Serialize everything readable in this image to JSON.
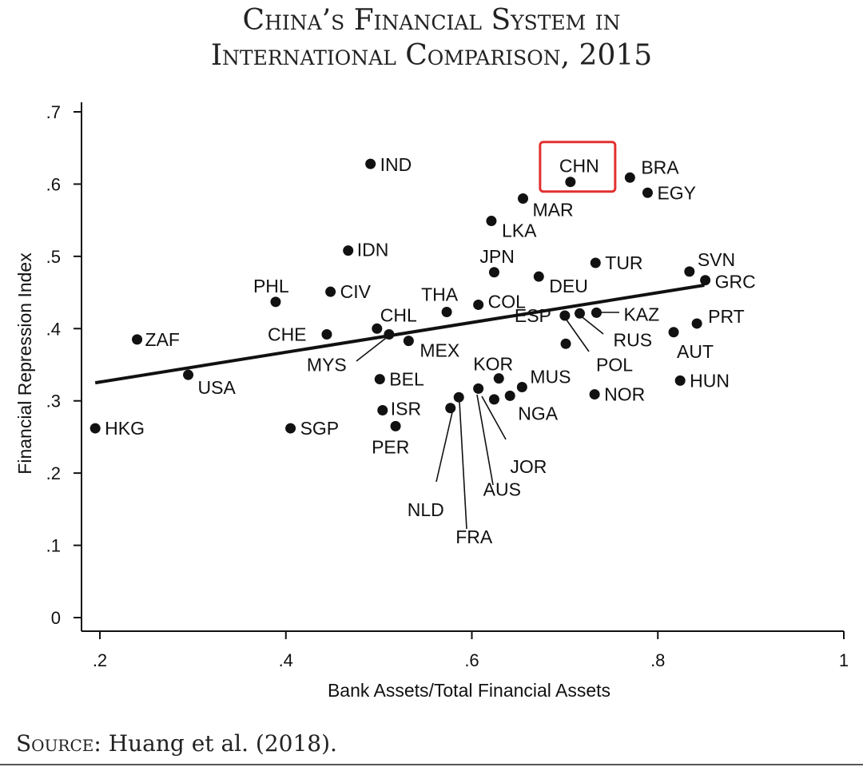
{
  "title": {
    "line1": "China’s Financial System in",
    "line2": "International Comparison, 2015"
  },
  "source": {
    "prefix": "Source:",
    "text": " Huang et al. (2018)."
  },
  "colors": {
    "highlight": "#e23030",
    "ink": "#111111"
  },
  "chart_data": {
    "type": "scatter",
    "xlabel": "Bank Assets/Total Financial Assets",
    "ylabel": "Financial Repression Index",
    "xlim": [
      0.18,
      1.0
    ],
    "ylim": [
      -0.01,
      0.7
    ],
    "xticks": [
      {
        "value": 0.2,
        "label": ".2"
      },
      {
        "value": 0.4,
        "label": ".4"
      },
      {
        "value": 0.6,
        "label": ".6"
      },
      {
        "value": 0.8,
        "label": ".8"
      },
      {
        "value": 1.0,
        "label": "1"
      }
    ],
    "yticks": [
      {
        "value": 0,
        "label": "0"
      },
      {
        "value": 0.1,
        "label": ".1"
      },
      {
        "value": 0.2,
        "label": ".2"
      },
      {
        "value": 0.3,
        "label": ".3"
      },
      {
        "value": 0.4,
        "label": ".4"
      },
      {
        "value": 0.5,
        "label": ".5"
      },
      {
        "value": 0.6,
        "label": ".6"
      },
      {
        "value": 0.7,
        "label": ".7"
      }
    ],
    "trendline": {
      "x": [
        0.195,
        0.85
      ],
      "y": [
        0.325,
        0.46
      ]
    },
    "highlight": "CHN",
    "points": [
      {
        "label": "IND",
        "x": 0.491,
        "y": 0.628
      },
      {
        "label": "CHN",
        "x": 0.706,
        "y": 0.603
      },
      {
        "label": "BRA",
        "x": 0.77,
        "y": 0.609
      },
      {
        "label": "EGY",
        "x": 0.789,
        "y": 0.588
      },
      {
        "label": "MAR",
        "x": 0.655,
        "y": 0.58
      },
      {
        "label": "LKA",
        "x": 0.621,
        "y": 0.549
      },
      {
        "label": "IDN",
        "x": 0.467,
        "y": 0.508
      },
      {
        "label": "JPN",
        "x": 0.624,
        "y": 0.478
      },
      {
        "label": "TUR",
        "x": 0.733,
        "y": 0.491
      },
      {
        "label": "SVN",
        "x": 0.834,
        "y": 0.479
      },
      {
        "label": "GRC",
        "x": 0.851,
        "y": 0.467
      },
      {
        "label": "DEU",
        "x": 0.672,
        "y": 0.472
      },
      {
        "label": "PHL",
        "x": 0.389,
        "y": 0.437
      },
      {
        "label": "CIV",
        "x": 0.448,
        "y": 0.451
      },
      {
        "label": "THA",
        "x": 0.573,
        "y": 0.423
      },
      {
        "label": "COL",
        "x": 0.607,
        "y": 0.433
      },
      {
        "label": "KAZ",
        "x": 0.734,
        "y": 0.422
      },
      {
        "label": "PRT",
        "x": 0.842,
        "y": 0.407
      },
      {
        "label": "RUS",
        "x": 0.716,
        "y": 0.421
      },
      {
        "label": "ESP",
        "x": 0.7,
        "y": 0.418
      },
      {
        "label": "POL",
        "x": 0.701,
        "y": 0.379
      },
      {
        "label": "AUT",
        "x": 0.817,
        "y": 0.395
      },
      {
        "label": "ZAF",
        "x": 0.24,
        "y": 0.385
      },
      {
        "label": "CHE",
        "x": 0.444,
        "y": 0.392
      },
      {
        "label": "CHL",
        "x": 0.498,
        "y": 0.4
      },
      {
        "label": "MYS",
        "x": 0.511,
        "y": 0.392
      },
      {
        "label": "MEX",
        "x": 0.532,
        "y": 0.383
      },
      {
        "label": "USA",
        "x": 0.295,
        "y": 0.336
      },
      {
        "label": "BEL",
        "x": 0.501,
        "y": 0.33
      },
      {
        "label": "KOR",
        "x": 0.629,
        "y": 0.331
      },
      {
        "label": "MUS",
        "x": 0.654,
        "y": 0.319
      },
      {
        "label": "HUN",
        "x": 0.824,
        "y": 0.328
      },
      {
        "label": "NOR",
        "x": 0.732,
        "y": 0.309
      },
      {
        "label": "NGA",
        "x": 0.641,
        "y": 0.307
      },
      {
        "label": "JOR",
        "x": 0.624,
        "y": 0.302
      },
      {
        "label": "AUS",
        "x": 0.607,
        "y": 0.317
      },
      {
        "label": "FRA",
        "x": 0.586,
        "y": 0.305
      },
      {
        "label": "NLD",
        "x": 0.577,
        "y": 0.29
      },
      {
        "label": "ISR",
        "x": 0.504,
        "y": 0.287
      },
      {
        "label": "PER",
        "x": 0.518,
        "y": 0.265
      },
      {
        "label": "HKG",
        "x": 0.195,
        "y": 0.262
      },
      {
        "label": "SGP",
        "x": 0.405,
        "y": 0.262
      }
    ]
  }
}
